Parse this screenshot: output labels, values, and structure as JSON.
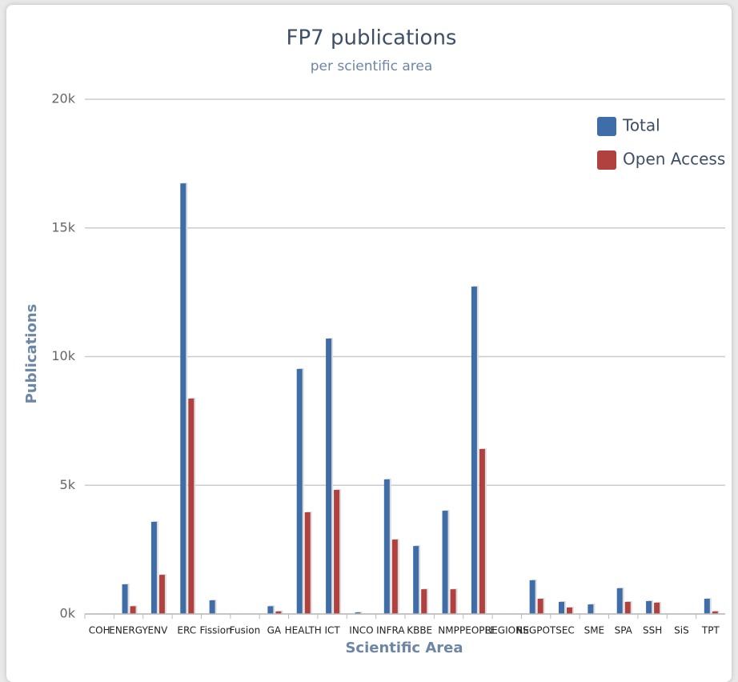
{
  "chart_data": {
    "type": "bar",
    "title": "FP7 publications",
    "subtitle": "per scientific area",
    "x_label": "Scientific Area",
    "y_label": "Publications",
    "categories": [
      "COH",
      "ENERGY",
      "ENV",
      "ERC",
      "Fission",
      "Fusion",
      "GA",
      "HEALTH",
      "ICT",
      "INCO",
      "INFRA",
      "KBBE",
      "NMP",
      "PEOPLE",
      "REGIONS",
      "REGPOT",
      "SEC",
      "SME",
      "SPA",
      "SSH",
      "SiS",
      "TPT"
    ],
    "series": [
      {
        "name": "Total",
        "color": "#3f6da8",
        "values": [
          0,
          1150,
          3580,
          16730,
          530,
          0,
          300,
          9520,
          10700,
          60,
          5230,
          2640,
          4010,
          12720,
          0,
          1310,
          470,
          370,
          1000,
          500,
          0,
          590
        ]
      },
      {
        "name": "Open Access",
        "color": "#b0413f",
        "values": [
          0,
          300,
          1520,
          8370,
          0,
          0,
          100,
          3950,
          4820,
          0,
          2890,
          960,
          960,
          6410,
          0,
          590,
          250,
          0,
          470,
          440,
          0,
          100
        ]
      }
    ],
    "ylim": [
      0,
      20000
    ],
    "yticks": [
      {
        "value": 0,
        "label": "0k"
      },
      {
        "value": 5000,
        "label": "5k"
      },
      {
        "value": 10000,
        "label": "10k"
      },
      {
        "value": 15000,
        "label": "15k"
      },
      {
        "value": 20000,
        "label": "20k"
      }
    ],
    "grid": true,
    "legend": "top-right"
  }
}
